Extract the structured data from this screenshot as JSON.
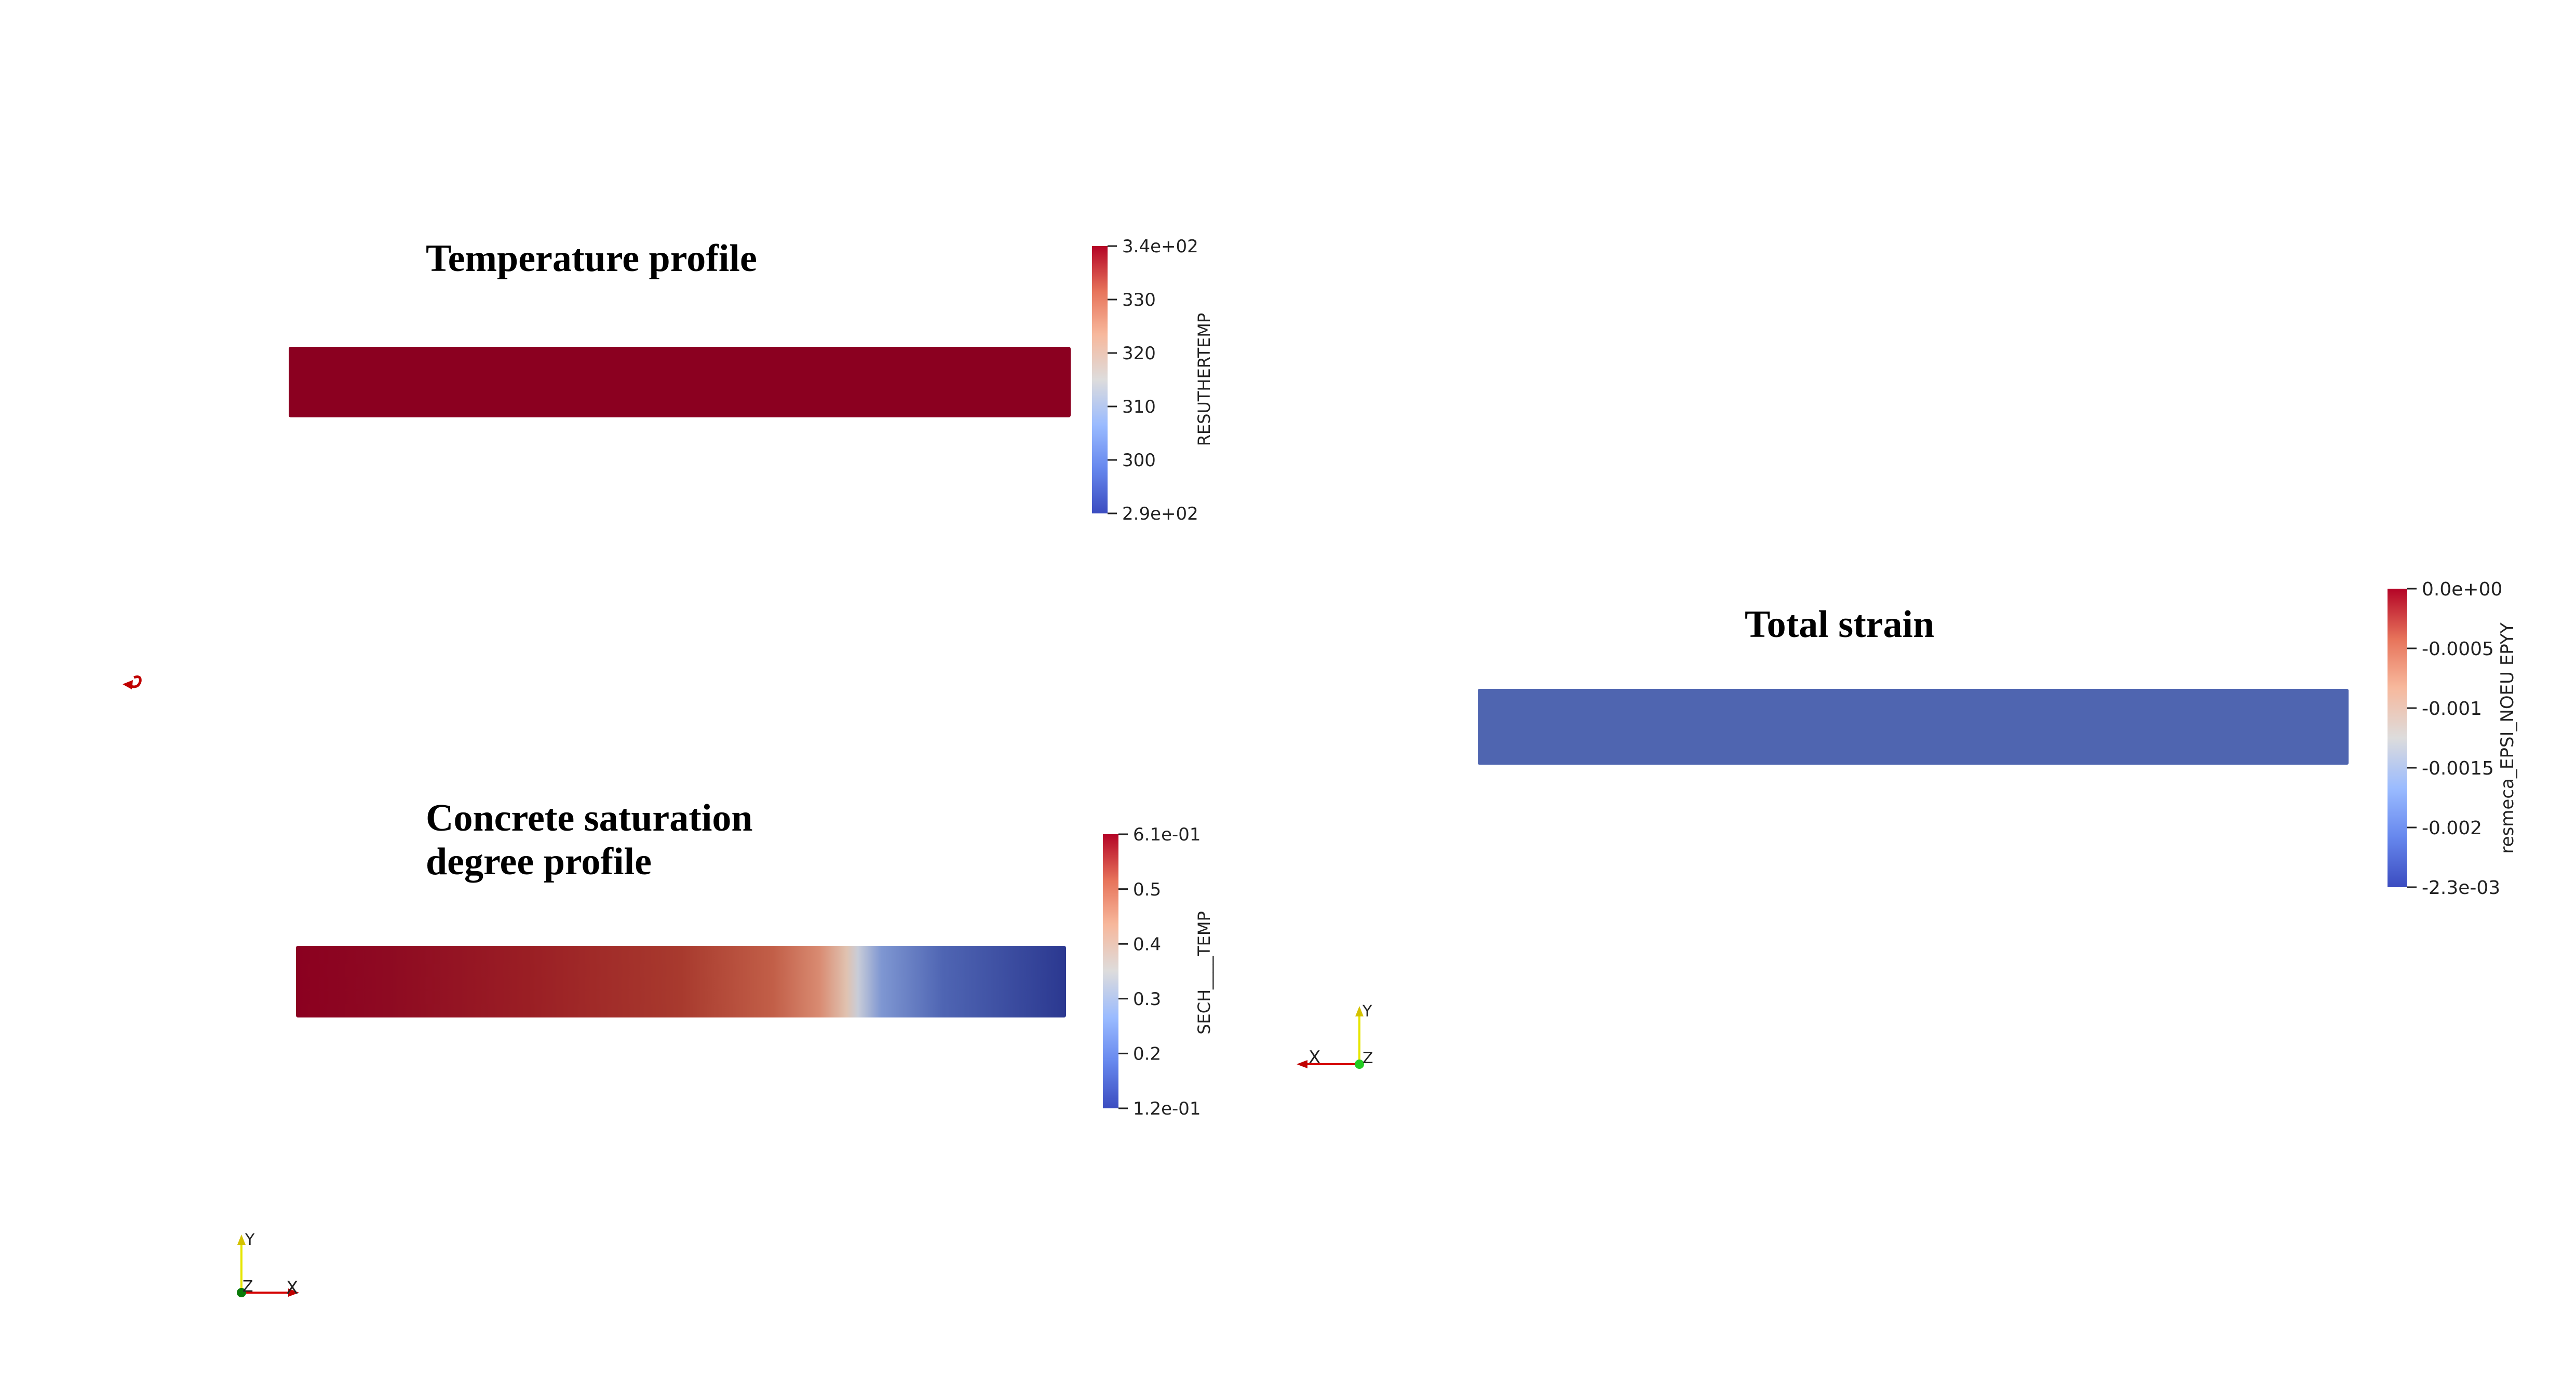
{
  "panels": [
    {
      "title_lines": [
        "Temperature profile"
      ],
      "legend": {
        "label": "RESUTHERTEMP",
        "ticks": [
          "3.4e+02",
          "330",
          "320",
          "310",
          "300",
          "2.9e+02"
        ]
      },
      "bar_color": "#8b0020"
    },
    {
      "title_lines": [
        "Concrete saturation",
        "degree profile"
      ],
      "legend": {
        "label": "SECH____TEMP",
        "ticks": [
          "6.1e-01",
          "0.5",
          "0.4",
          "0.3",
          "0.2",
          "1.2e-01"
        ]
      }
    },
    {
      "title_lines": [
        "Total strain"
      ],
      "legend": {
        "label": "resmeca_EPSI_NOEU EPYY",
        "ticks": [
          "0.0e+00",
          "-0.0005",
          "-0.001",
          "-0.0015",
          "-0.002",
          "-2.3e-03"
        ]
      },
      "bar_color": "#4f65b0"
    }
  ],
  "axes_widgets": [
    {
      "labels": {
        "y": "Y",
        "x": "X",
        "z": "Z"
      }
    },
    {
      "labels": {
        "y": "Y",
        "x": "X",
        "z": "Z"
      }
    }
  ],
  "colors": {
    "colormap": [
      "#3b4cc0",
      "#7596e8",
      "#b8cff8",
      "#dddddd",
      "#f2b89a",
      "#db6a4f",
      "#b40426"
    ],
    "x_axis": "#d40000",
    "y_axis": "#e6e600",
    "z_axis": "#00b300"
  }
}
